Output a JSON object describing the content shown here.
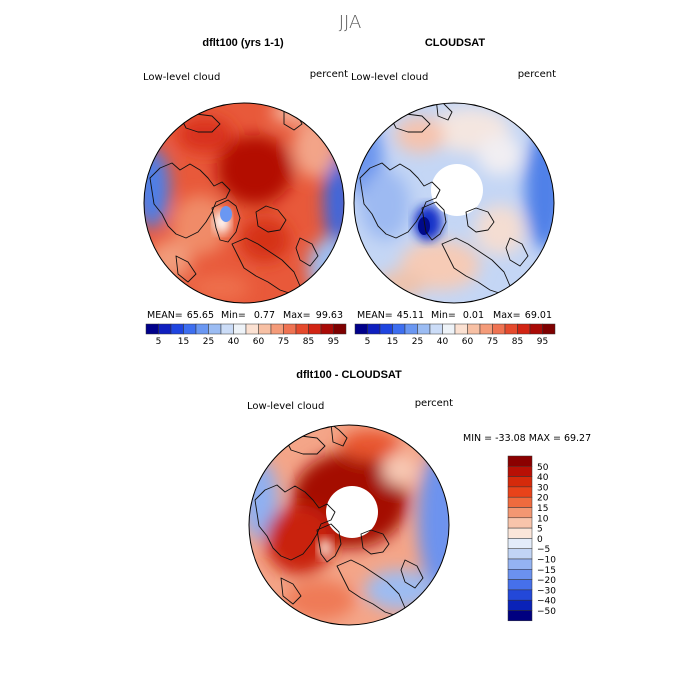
{
  "figure": {
    "season": "JJA"
  },
  "panels": [
    {
      "title": "dflt100 (yrs 1-1)",
      "field": "Low-level cloud",
      "units": "percent",
      "stats": {
        "mean_label": "MEAN=",
        "mean": "65.65",
        "min_label": "Min=",
        "min": "0.77",
        "max_label": "Max=",
        "max": "99.63"
      }
    },
    {
      "title": "CLOUDSAT",
      "field": "Low-level cloud",
      "units": "percent",
      "stats": {
        "mean_label": "MEAN=",
        "mean": "45.11",
        "min_label": "Min=",
        "min": "0.01",
        "max_label": "Max=",
        "max": "69.01"
      }
    },
    {
      "title": "dflt100 - CLOUDSAT",
      "field": "Low-level cloud",
      "units": "percent",
      "range_text": "MIN = -33.08 MAX =  69.27"
    }
  ],
  "colorbars": {
    "absolute": {
      "colors": [
        "#00008a",
        "#0f1fbf",
        "#1f45e0",
        "#3d6ef0",
        "#6a97f2",
        "#9bbcf3",
        "#cbdcf7",
        "#eef3f8",
        "#fbe1d2",
        "#f7c0a4",
        "#f49b79",
        "#ef7352",
        "#e54a2d",
        "#d22413",
        "#a90a06",
        "#7e0000"
      ],
      "labels": [
        "5",
        "15",
        "25",
        "40",
        "60",
        "75",
        "85",
        "95"
      ]
    },
    "difference": {
      "colors": [
        "#8b0000",
        "#b81005",
        "#d52a0b",
        "#e8431a",
        "#ef6b3e",
        "#f39772",
        "#f8c4ab",
        "#fbe6da",
        "#e3ecfa",
        "#c1d4f5",
        "#94b3f2",
        "#6b91ef",
        "#4670ea",
        "#2348d9",
        "#0a22b8",
        "#000080"
      ],
      "labels": [
        "50",
        "40",
        "30",
        "20",
        "15",
        "10",
        "5",
        "0",
        "−5",
        "−10",
        "−15",
        "−20",
        "−30",
        "−40",
        "−50"
      ]
    }
  },
  "chart_data": [
    {
      "type": "heatmap",
      "projection": "polar-stereographic-north",
      "title": "dflt100 (yrs 1-1)",
      "variable": "Low-level cloud",
      "units": "percent",
      "mean": 65.65,
      "min": 0.77,
      "max": 99.63,
      "color_levels": [
        5,
        10,
        15,
        20,
        25,
        30,
        40,
        50,
        60,
        70,
        75,
        80,
        85,
        90,
        95
      ]
    },
    {
      "type": "heatmap",
      "projection": "polar-stereographic-north",
      "title": "CLOUDSAT",
      "variable": "Low-level cloud",
      "units": "percent",
      "mean": 45.11,
      "min": 0.01,
      "max": 69.01,
      "color_levels": [
        5,
        10,
        15,
        20,
        25,
        30,
        40,
        50,
        60,
        70,
        75,
        80,
        85,
        90,
        95
      ]
    },
    {
      "type": "heatmap",
      "projection": "polar-stereographic-north",
      "title": "dflt100 - CLOUDSAT",
      "variable": "Low-level cloud",
      "units": "percent",
      "min": -33.08,
      "max": 69.27,
      "color_levels": [
        50,
        40,
        30,
        20,
        15,
        10,
        5,
        0,
        -5,
        -10,
        -15,
        -20,
        -30,
        -40,
        -50
      ]
    }
  ]
}
